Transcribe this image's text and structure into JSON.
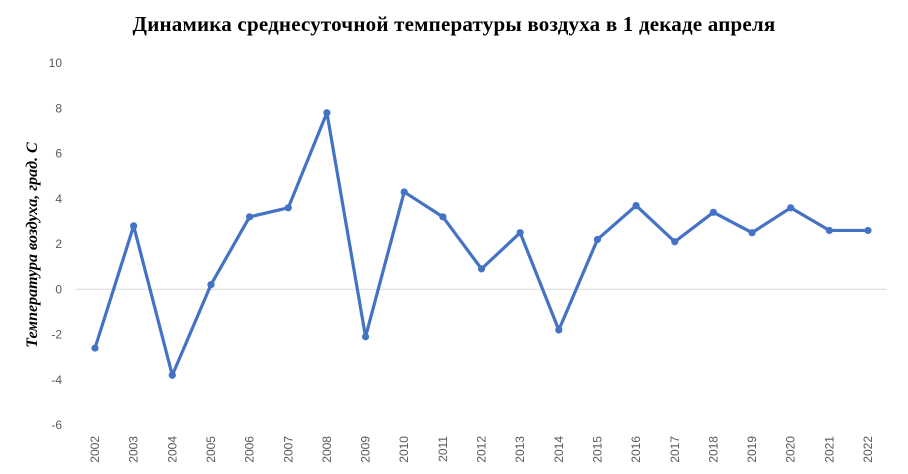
{
  "chart_data": {
    "type": "line",
    "title": "Динамика среднесуточной температуры воздуха в 1 декаде апреля",
    "xlabel": "",
    "ylabel": "Температура воздуха, град. С",
    "ylim": [
      -6,
      10
    ],
    "yticks": [
      -6,
      -4,
      -2,
      0,
      2,
      4,
      6,
      8,
      10
    ],
    "grid": "horizontal zero line only",
    "legend": "none",
    "color": "#4472C4",
    "categories": [
      "2002",
      "2003",
      "2004",
      "2005",
      "2006",
      "2007",
      "2008",
      "2009",
      "2010",
      "2011",
      "2012",
      "2013",
      "2014",
      "2015",
      "2016",
      "2017",
      "2018",
      "2019",
      "2020",
      "2021",
      "2022"
    ],
    "series": [
      {
        "values": [
          -2.6,
          2.8,
          -3.8,
          0.2,
          3.2,
          3.6,
          7.8,
          -2.1,
          4.3,
          3.2,
          0.9,
          2.5,
          -1.8,
          2.2,
          3.7,
          2.1,
          3.4,
          2.5,
          3.6,
          2.6,
          2.6
        ]
      }
    ]
  }
}
